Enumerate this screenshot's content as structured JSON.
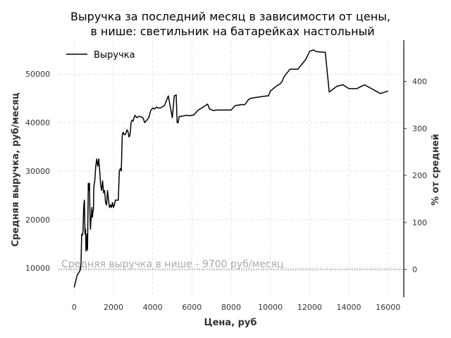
{
  "chart_data": {
    "type": "line",
    "title_line1": "Выручка за последний месяц в зависимости от цены,",
    "title_line2": "в нише: светильник на батарейках настольный",
    "xlabel": "Цена, руб",
    "ylabel": "Средняя выручка, руб/месяц",
    "y2label": "% от средней",
    "xlim": [
      -800,
      16800
    ],
    "ylim": [
      4000,
      57000
    ],
    "x_ticks": [
      "0",
      "2000",
      "4000",
      "6000",
      "8000",
      "10000",
      "12000",
      "14000",
      "16000"
    ],
    "y_ticks": [
      "10000",
      "20000",
      "30000",
      "40000",
      "50000"
    ],
    "y2_ticks": [
      "0",
      "100",
      "200",
      "300",
      "400"
    ],
    "grid": true,
    "legend_position": "top-left",
    "series": [
      {
        "name": "Выручка",
        "color": "#000000",
        "x": [
          0,
          150,
          300,
          350,
          380,
          420,
          450,
          480,
          500,
          520,
          550,
          580,
          600,
          630,
          650,
          680,
          700,
          720,
          750,
          780,
          800,
          830,
          850,
          880,
          900,
          930,
          950,
          980,
          1000,
          1030,
          1050,
          1100,
          1150,
          1200,
          1250,
          1300,
          1350,
          1400,
          1450,
          1500,
          1550,
          1600,
          1650,
          1700,
          1750,
          1800,
          1850,
          1900,
          1950,
          2000,
          2050,
          2100,
          2150,
          2200,
          2250,
          2300,
          2350,
          2400,
          2450,
          2500,
          2550,
          2600,
          2650,
          2700,
          2750,
          2800,
          2850,
          2900,
          2950,
          3000,
          3050,
          3100,
          3200,
          3300,
          3400,
          3500,
          3600,
          3800,
          3900,
          4000,
          4100,
          4200,
          4300,
          4400,
          4600,
          4800,
          5000,
          5100,
          5200,
          5250,
          5300,
          5350,
          5400,
          5500,
          5700,
          5900,
          6100,
          6300,
          6500,
          6800,
          6900,
          7100,
          7300,
          7500,
          8000,
          8200,
          8500,
          8700,
          8800,
          8900,
          9000,
          9300,
          9800,
          9900,
          10000,
          10300,
          10500,
          10600,
          10700,
          10800,
          11000,
          11200,
          11400,
          11600,
          11800,
          12000,
          12200,
          12300,
          12400,
          12800,
          13000,
          13400,
          13700,
          14000,
          14400,
          14800,
          15600,
          16000
        ],
        "values": [
          6000,
          8500,
          9500,
          11000,
          17000,
          16800,
          17500,
          22000,
          23500,
          24000,
          17000,
          18000,
          13500,
          14500,
          17000,
          13700,
          21000,
          27500,
          26000,
          27500,
          22000,
          18000,
          19500,
          21000,
          22500,
          20500,
          21500,
          22000,
          26500,
          27500,
          28000,
          31000,
          32500,
          31000,
          32500,
          30000,
          27000,
          26000,
          28000,
          25500,
          26000,
          23500,
          23000,
          26000,
          24000,
          22500,
          23000,
          22500,
          23500,
          22500,
          23000,
          24000,
          24000,
          24000,
          24000,
          30000,
          30500,
          30000,
          37500,
          38000,
          37500,
          37500,
          38000,
          38500,
          38000,
          37000,
          37500,
          40000,
          40500,
          40300,
          41000,
          41500,
          41000,
          41300,
          41200,
          41000,
          40000,
          41000,
          42500,
          43000,
          42800,
          43200,
          43000,
          43000,
          43500,
          45500,
          41000,
          45500,
          45700,
          40000,
          40000,
          41200,
          41300,
          41300,
          41500,
          41400,
          41600,
          42500,
          43000,
          43800,
          42800,
          42500,
          42600,
          42600,
          42600,
          43500,
          43700,
          43700,
          44300,
          44800,
          45000,
          45200,
          45500,
          45500,
          46500,
          47500,
          48000,
          48500,
          49500,
          50000,
          51000,
          51000,
          51000,
          52000,
          53000,
          54700,
          55000,
          54700,
          54600,
          54500,
          46300,
          47500,
          47800,
          47000,
          47000,
          47800,
          46000,
          46500
        ]
      }
    ],
    "reference_line": {
      "value": 9700,
      "label": "Средняя выручка в нише - 9700 руб/месяц",
      "color": "#aaaaaa"
    },
    "y2_mapping": {
      "zero_at": 9700,
      "hundred_at": 19400
    }
  }
}
